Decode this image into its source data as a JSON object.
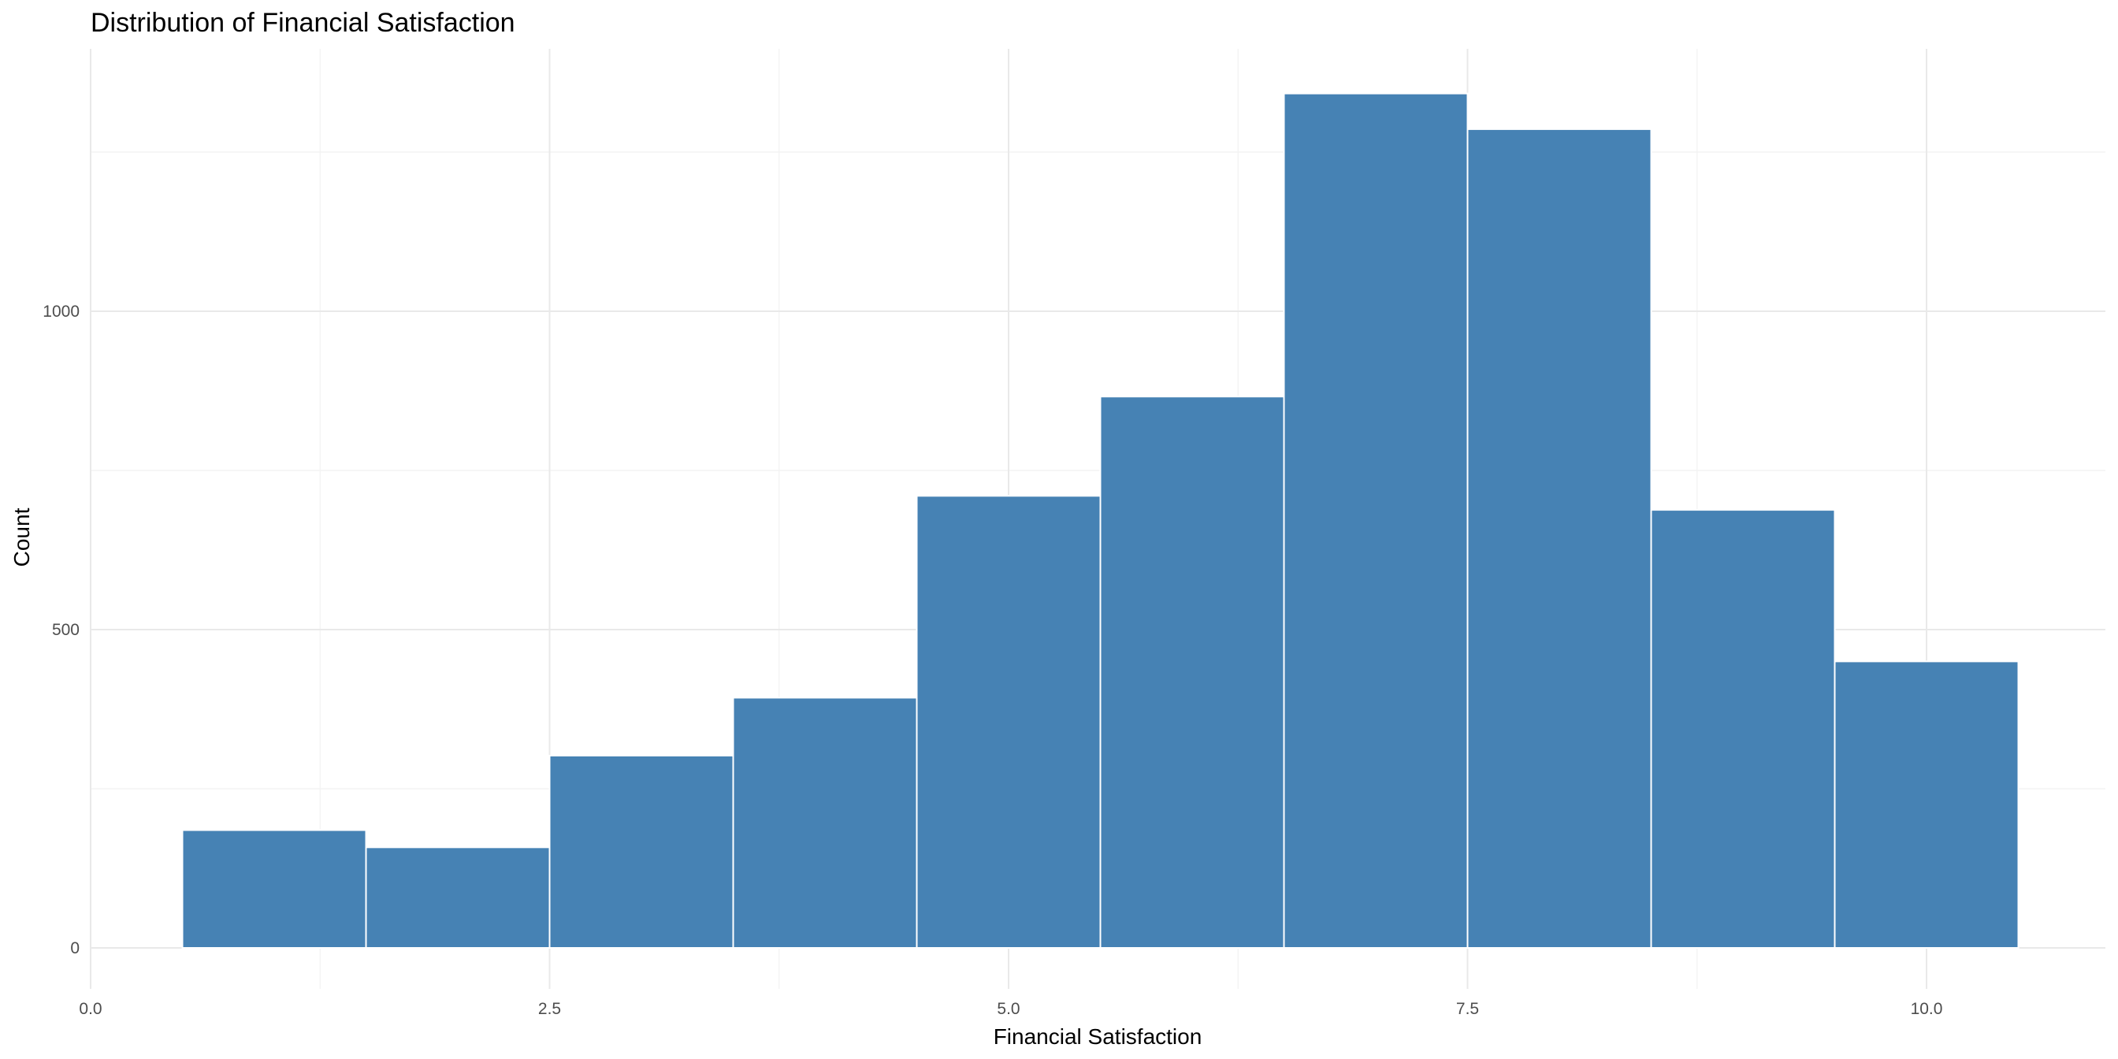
{
  "chart_data": {
    "type": "bar",
    "title": "Distribution of Financial Satisfaction",
    "xlabel": "Financial Satisfaction",
    "ylabel": "Count",
    "xlim": [
      0,
      11
    ],
    "ylim": [
      0,
      1350
    ],
    "x_ticks": [
      0,
      2.5,
      5,
      7.5,
      10
    ],
    "x_tick_labels": [
      "0.0",
      "2.5",
      "5.0",
      "7.5",
      "10.0"
    ],
    "y_ticks": [
      0,
      500,
      1000
    ],
    "y_tick_labels": [
      "0",
      "500",
      "1000"
    ],
    "bins": [
      {
        "x_start": 0.5,
        "x_end": 1.5,
        "count": 185
      },
      {
        "x_start": 1.5,
        "x_end": 2.5,
        "count": 158
      },
      {
        "x_start": 2.5,
        "x_end": 3.5,
        "count": 302
      },
      {
        "x_start": 3.5,
        "x_end": 4.5,
        "count": 393
      },
      {
        "x_start": 4.5,
        "x_end": 5.5,
        "count": 710
      },
      {
        "x_start": 5.5,
        "x_end": 6.5,
        "count": 866
      },
      {
        "x_start": 6.5,
        "x_end": 7.5,
        "count": 1342
      },
      {
        "x_start": 7.5,
        "x_end": 8.5,
        "count": 1286
      },
      {
        "x_start": 8.5,
        "x_end": 9.5,
        "count": 688
      },
      {
        "x_start": 9.5,
        "x_end": 10.5,
        "count": 450
      }
    ],
    "bar_color": "#4682b4",
    "bar_outline": "#ffffff",
    "grid": true,
    "legend": "none"
  }
}
